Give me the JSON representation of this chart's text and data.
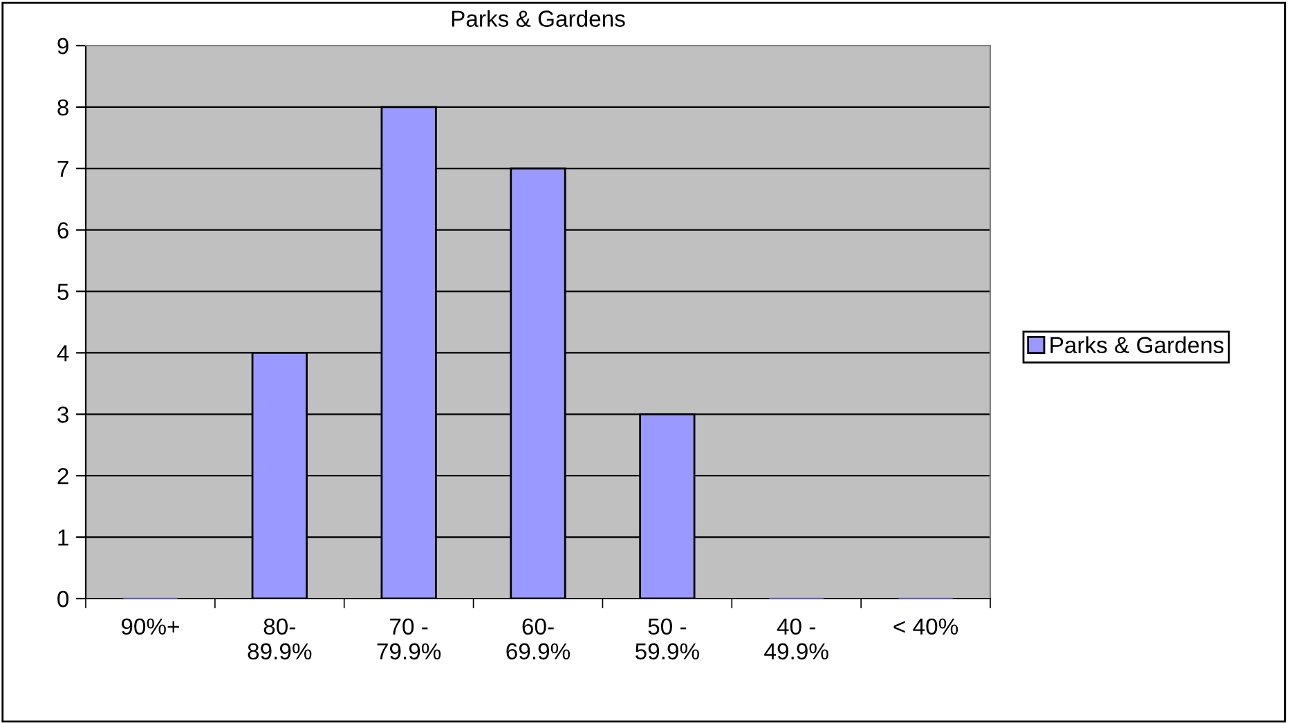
{
  "chart_data": {
    "type": "bar",
    "title": "Parks & Gardens",
    "categories": [
      "90%+",
      "80-\n89.9%",
      "70 -\n79.9%",
      "60-\n69.9%",
      "50 -\n59.9%",
      "40 -\n49.9%",
      "< 40%"
    ],
    "series": [
      {
        "name": "Parks & Gardens",
        "color": "#9999ff",
        "values": [
          0,
          4,
          8,
          7,
          3,
          0,
          0
        ]
      }
    ],
    "ylim": [
      0,
      9
    ],
    "yticks": [
      0,
      1,
      2,
      3,
      4,
      5,
      6,
      7,
      8,
      9
    ],
    "grid": "y",
    "legend": "right"
  }
}
